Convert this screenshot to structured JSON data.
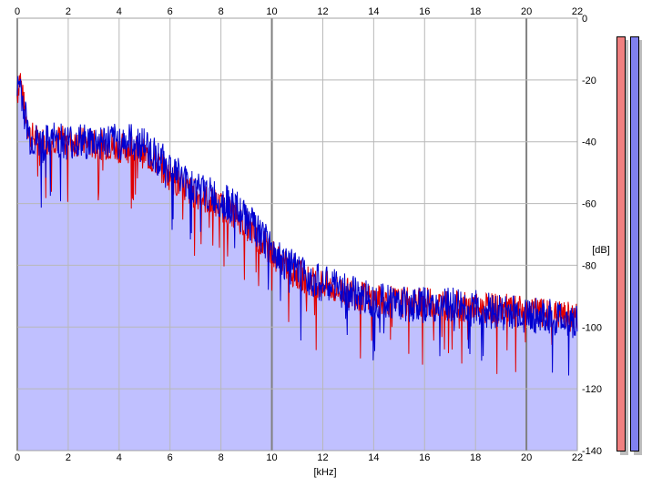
{
  "chart_data": {
    "type": "area",
    "xlabel": "[kHz]",
    "ylabel": "[dB]",
    "xlim": [
      0,
      22
    ],
    "ylim": [
      -140,
      0
    ],
    "x_ticks": [
      0,
      2,
      4,
      6,
      8,
      10,
      12,
      14,
      16,
      18,
      20,
      22
    ],
    "y_ticks": [
      0,
      -20,
      -40,
      -60,
      -80,
      -100,
      -120,
      -140
    ],
    "grid": true,
    "series": [
      {
        "color": "#e00000",
        "x": [
          0,
          0.1,
          0.25,
          0.5,
          1,
          1.5,
          2,
          2.5,
          3,
          3.5,
          4,
          4.5,
          5,
          5.5,
          6,
          6.5,
          7,
          7.5,
          8,
          8.5,
          9,
          9.5,
          10,
          10.5,
          11,
          11.5,
          12,
          12.5,
          13,
          14,
          15,
          16,
          17,
          18,
          19,
          20,
          21,
          22
        ],
        "values": [
          -25,
          -18,
          -28,
          -38,
          -40,
          -39,
          -40,
          -40,
          -41,
          -41,
          -42,
          -42,
          -44,
          -47,
          -51,
          -55,
          -57,
          -59,
          -61,
          -63,
          -67,
          -72,
          -76,
          -80,
          -83,
          -85,
          -86,
          -88,
          -89,
          -91,
          -92,
          -92,
          -93,
          -94,
          -94,
          -95,
          -96,
          -97
        ]
      },
      {
        "color": "#0000d0",
        "x": [
          0,
          0.1,
          0.25,
          0.5,
          1,
          1.5,
          2,
          2.5,
          3,
          3.5,
          4,
          4.5,
          5,
          5.5,
          6,
          6.5,
          7,
          7.5,
          8,
          8.5,
          9,
          9.5,
          10,
          10.5,
          11,
          11.5,
          12,
          12.5,
          13,
          14,
          15,
          16,
          17,
          18,
          19,
          20,
          21,
          22
        ],
        "values": [
          -24,
          -20,
          -29,
          -39,
          -41,
          -39,
          -40,
          -40,
          -40,
          -40,
          -40,
          -40,
          -41,
          -45,
          -48,
          -52,
          -55,
          -57,
          -59,
          -61,
          -65,
          -70,
          -75,
          -79,
          -82,
          -84,
          -86,
          -87,
          -89,
          -91,
          -92,
          -93,
          -93,
          -94,
          -95,
          -96,
          -97,
          -98
        ]
      }
    ],
    "fill_color": "#c0c0ff",
    "meters": [
      {
        "color": "#f08080"
      },
      {
        "color": "#8080f0"
      }
    ]
  }
}
